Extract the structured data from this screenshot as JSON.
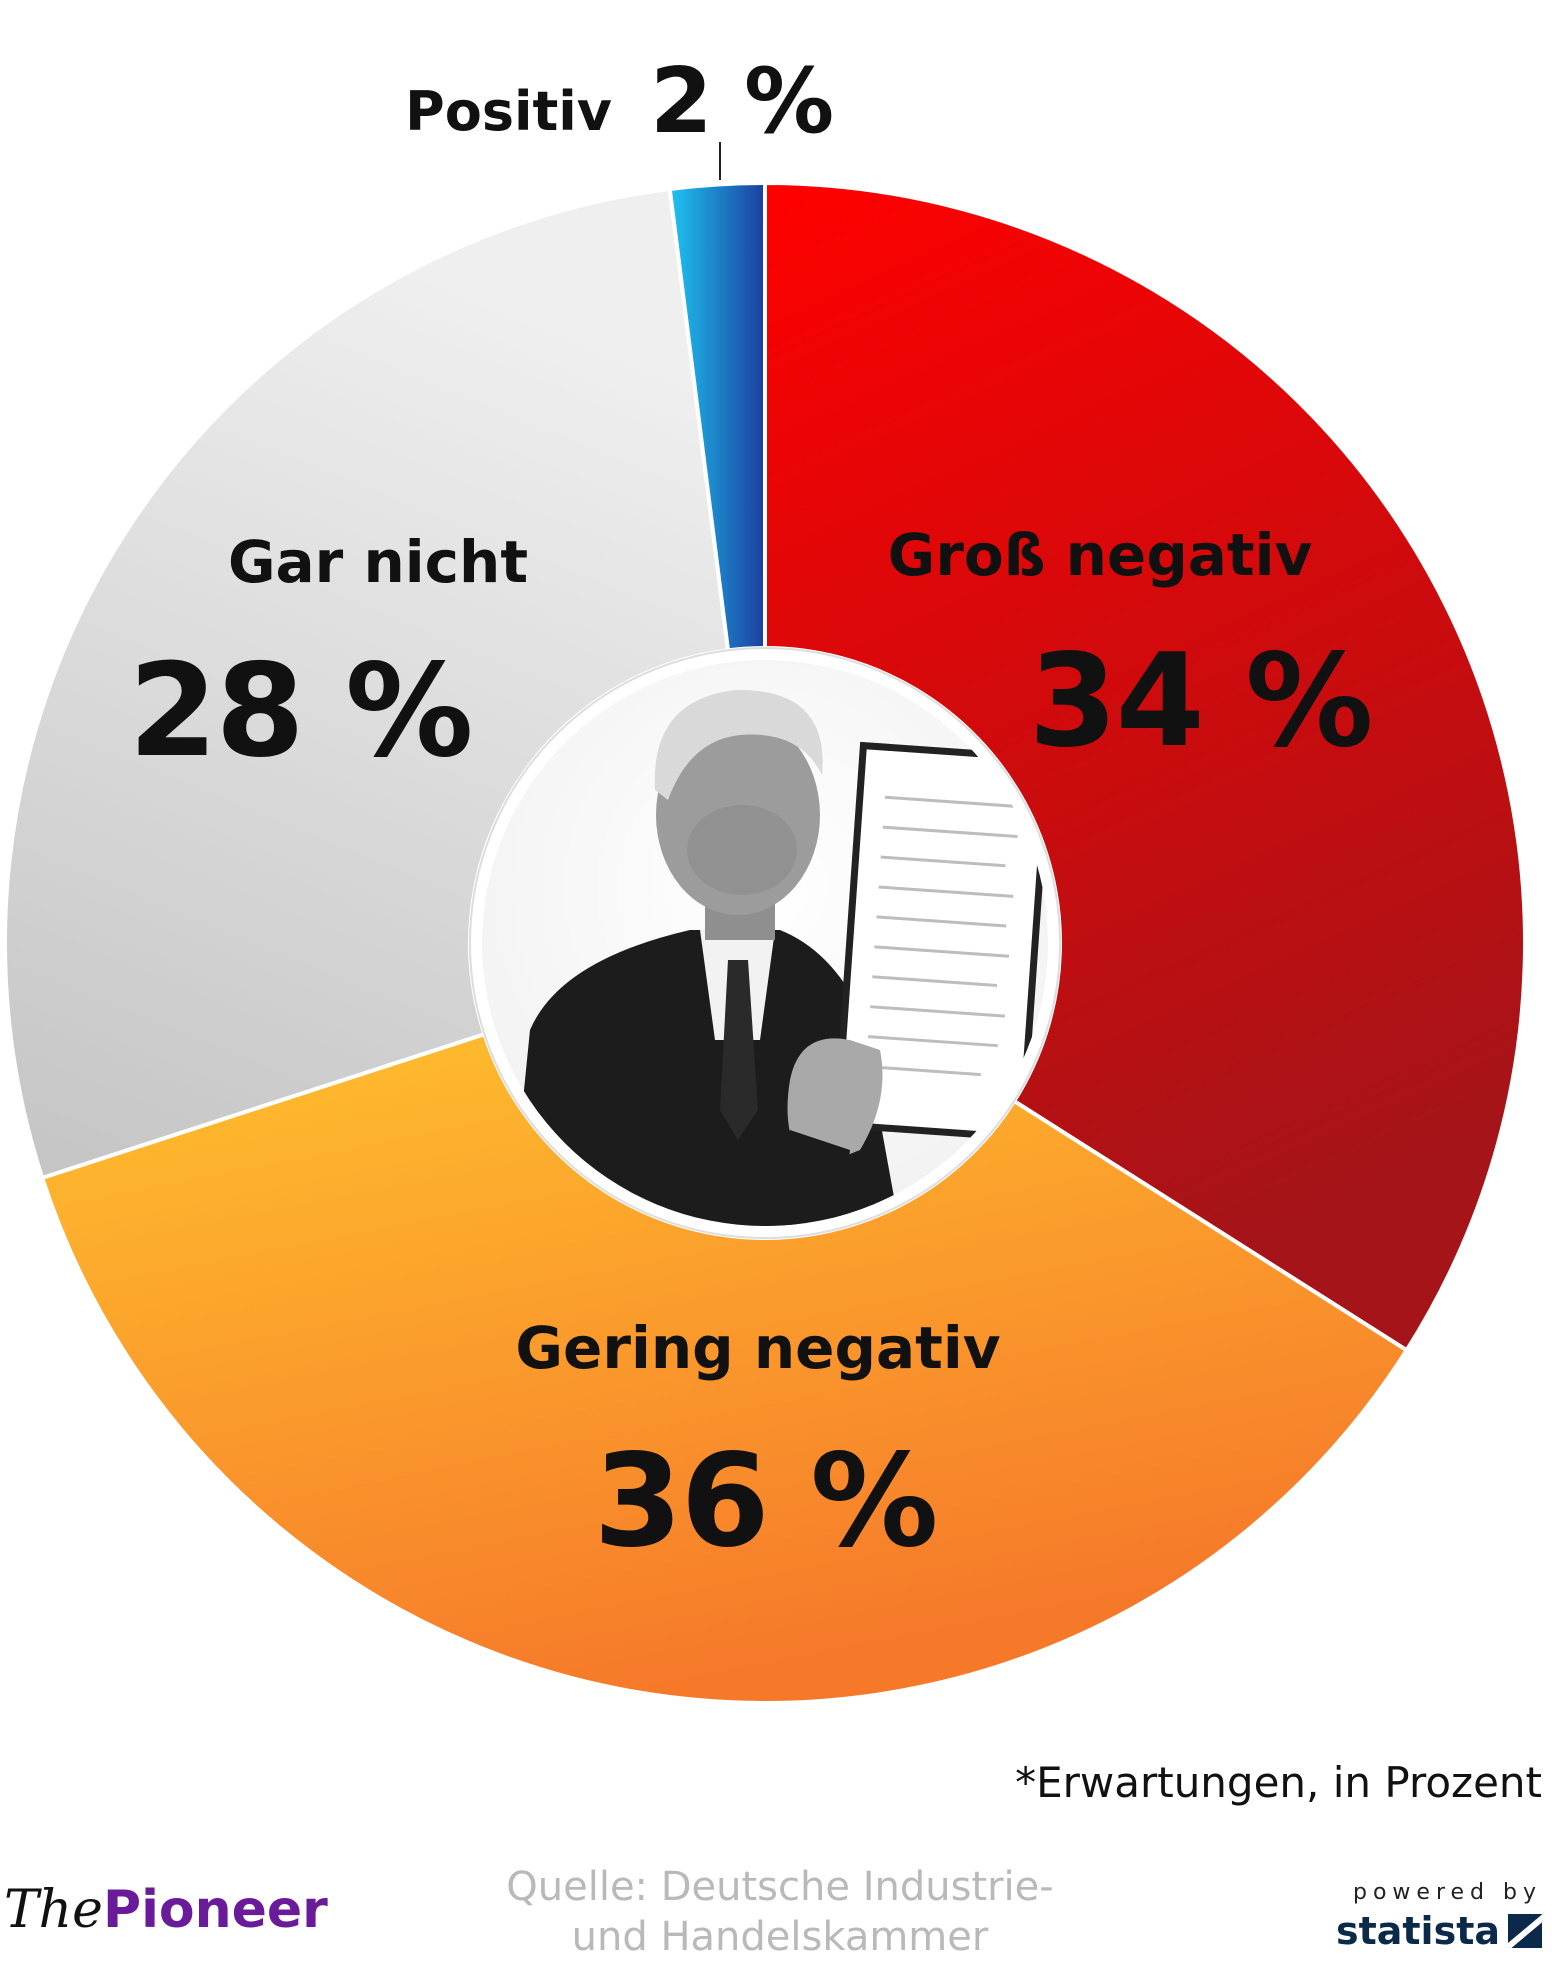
{
  "chart_data": {
    "type": "pie",
    "donut": true,
    "start_angle_deg": 0,
    "direction": "clockwise",
    "categories": [
      "Groß negativ",
      "Gering negativ",
      "Gar nicht",
      "Positiv"
    ],
    "values": [
      34,
      36,
      28,
      2
    ],
    "value_labels": [
      "34 %",
      "36 %",
      "28 %",
      "2 %"
    ],
    "colors": {
      "Groß negativ": [
        "#ff0000",
        "#a51418"
      ],
      "Gering negativ": [
        "#ffc12e",
        "#f6792a"
      ],
      "Gar nicht": [
        "#efefef",
        "#c7c7c7"
      ],
      "Positiv": [
        "#1ec4f1",
        "#1b3f9e"
      ]
    },
    "legend": "none"
  },
  "center_image": {
    "description_icon": "portrait-photo-icon"
  },
  "footnote": "*Erwartungen, in Prozent",
  "source": {
    "line1": "Quelle: Deutsche Industrie-",
    "line2": "und Handelskammer"
  },
  "brand": {
    "the": "The",
    "name": "Pioneer"
  },
  "statista": {
    "powered": "powered by",
    "name": "statista"
  }
}
